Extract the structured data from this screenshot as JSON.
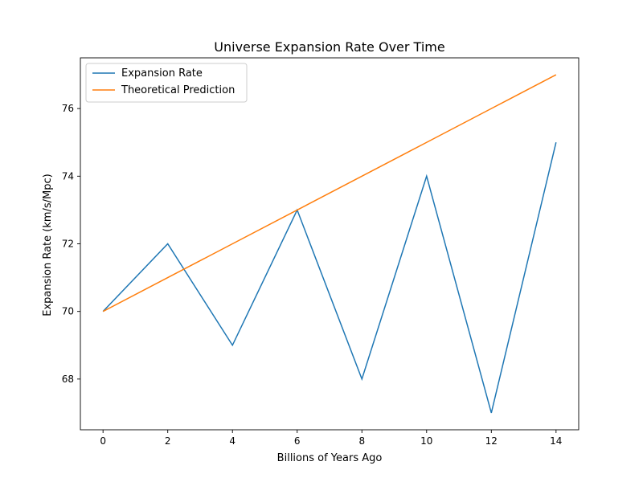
{
  "chart_data": {
    "type": "line",
    "title": "Universe Expansion Rate Over Time",
    "xlabel": "Billions of Years Ago",
    "ylabel": "Expansion Rate (km/s/Mpc)",
    "xlim": [
      -0.7,
      14.7
    ],
    "ylim": [
      66.5,
      77.5
    ],
    "x_ticks": [
      0,
      2,
      4,
      6,
      8,
      10,
      12,
      14
    ],
    "y_ticks": [
      68,
      70,
      72,
      74,
      76
    ],
    "grid": false,
    "legend_position": "top-left",
    "series": [
      {
        "name": "Expansion Rate",
        "color": "#1f77b4",
        "x": [
          0,
          2,
          4,
          6,
          8,
          10,
          12,
          14
        ],
        "y": [
          70,
          72,
          69,
          73,
          68,
          74,
          67,
          75
        ]
      },
      {
        "name": "Theoretical Prediction",
        "color": "#ff7f0e",
        "x": [
          0,
          2,
          4,
          6,
          8,
          10,
          12,
          14
        ],
        "y": [
          70,
          71,
          72,
          73,
          74,
          75,
          76,
          77
        ]
      }
    ]
  }
}
